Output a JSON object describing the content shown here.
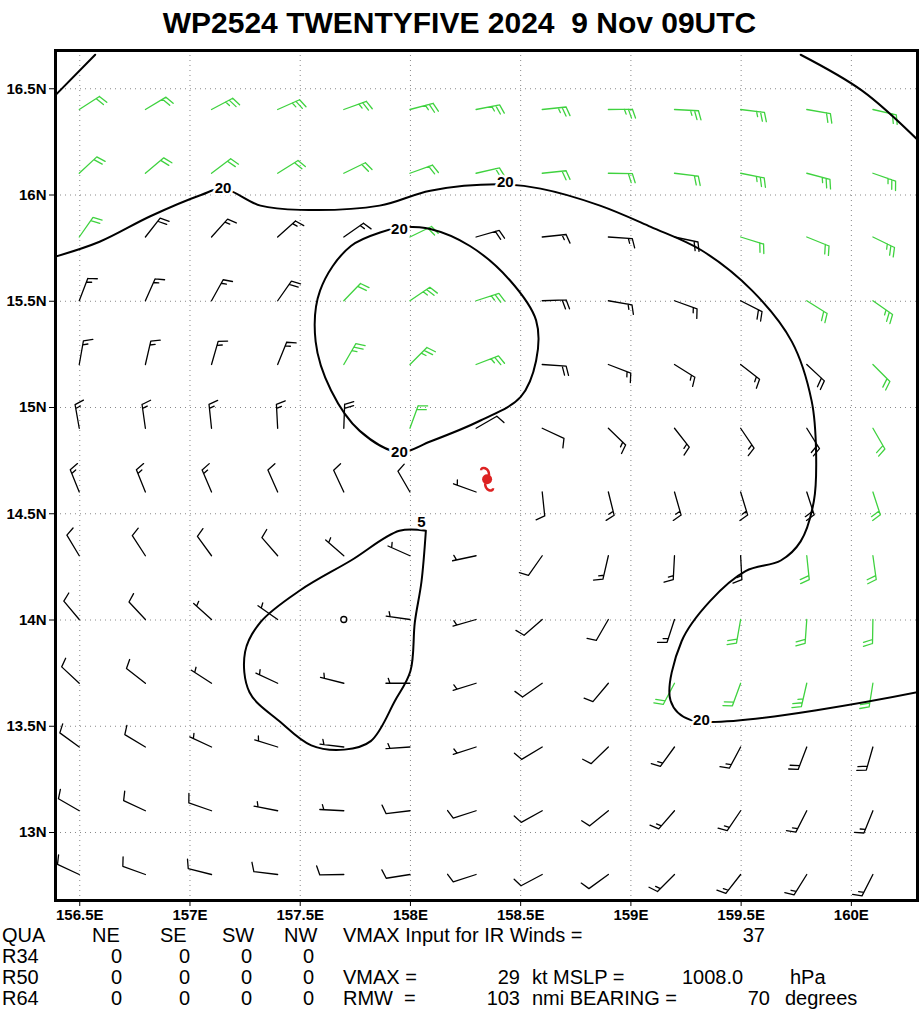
{
  "chart_data": {
    "type": "wind_barbs",
    "title": "WP2524 TWENTYFIVE 2024  9 Nov 09UTC",
    "xlim": [
      156.39,
      160.3
    ],
    "ylim": [
      12.68,
      16.68
    ],
    "xticks": [
      {
        "value": 156.5,
        "label": "156.5E"
      },
      {
        "value": 157,
        "label": "157E"
      },
      {
        "value": 157.5,
        "label": "157.5E"
      },
      {
        "value": 158,
        "label": "158E"
      },
      {
        "value": 158.5,
        "label": "158.5E"
      },
      {
        "value": 159,
        "label": "159E"
      },
      {
        "value": 159.5,
        "label": "159.5E"
      },
      {
        "value": 160,
        "label": "160E"
      }
    ],
    "yticks": [
      {
        "value": 13,
        "label": "13N"
      },
      {
        "value": 13.5,
        "label": "13.5N"
      },
      {
        "value": 14,
        "label": "14N"
      },
      {
        "value": 14.5,
        "label": "14.5N"
      },
      {
        "value": 15,
        "label": "15N"
      },
      {
        "value": 15.5,
        "label": "15.5N"
      },
      {
        "value": 16,
        "label": "16N"
      },
      {
        "value": 16.5,
        "label": "16.5N"
      }
    ],
    "grid": true,
    "center": [
      158.35,
      14.66
    ],
    "center_color": "#dd2222",
    "contours": [
      {
        "level": 20,
        "points": [
          [
            156.39,
            15.71
          ],
          [
            156.59,
            15.78
          ],
          [
            156.82,
            15.9
          ],
          [
            157.05,
            16.0
          ],
          [
            157.15,
            16.03
          ],
          [
            157.32,
            15.95
          ],
          [
            157.5,
            15.93
          ],
          [
            157.86,
            15.95
          ],
          [
            158.09,
            16.02
          ],
          [
            158.41,
            16.05
          ],
          [
            158.59,
            16.03
          ],
          [
            158.86,
            15.95
          ],
          [
            159.09,
            15.85
          ],
          [
            159.32,
            15.74
          ],
          [
            159.55,
            15.55
          ],
          [
            159.73,
            15.31
          ],
          [
            159.82,
            15.03
          ],
          [
            159.84,
            14.79
          ],
          [
            159.83,
            14.56
          ],
          [
            159.77,
            14.37
          ],
          [
            159.68,
            14.28
          ],
          [
            159.52,
            14.23
          ],
          [
            159.36,
            14.09
          ],
          [
            159.23,
            13.9
          ],
          [
            159.18,
            13.62
          ],
          [
            159.27,
            13.53
          ],
          [
            160.3,
            13.66
          ]
        ],
        "label_at": [
          [
            157.15,
            16.03
          ],
          [
            158.43,
            16.06
          ],
          [
            159.32,
            13.53
          ]
        ]
      },
      {
        "level": 20,
        "points": [
          [
            157.95,
            15.85
          ],
          [
            157.73,
            15.76
          ],
          [
            157.59,
            15.55
          ],
          [
            157.57,
            15.31
          ],
          [
            157.64,
            15.08
          ],
          [
            157.77,
            14.89
          ],
          [
            157.95,
            14.79
          ],
          [
            158.09,
            14.84
          ],
          [
            158.32,
            14.94
          ],
          [
            158.5,
            15.05
          ],
          [
            158.57,
            15.22
          ],
          [
            158.57,
            15.41
          ],
          [
            158.45,
            15.6
          ],
          [
            158.27,
            15.76
          ],
          [
            158.09,
            15.84
          ],
          [
            157.95,
            15.85
          ]
        ],
        "label_at": [
          [
            157.95,
            15.84
          ],
          [
            157.95,
            14.79
          ]
        ]
      },
      {
        "level": 5,
        "points": [
          [
            158.07,
            14.42
          ],
          [
            158.05,
            14.18
          ],
          [
            158.02,
            13.99
          ],
          [
            158.0,
            13.76
          ],
          [
            157.93,
            13.62
          ],
          [
            157.82,
            13.43
          ],
          [
            157.7,
            13.39
          ],
          [
            157.55,
            13.41
          ],
          [
            157.41,
            13.52
          ],
          [
            157.27,
            13.66
          ],
          [
            157.25,
            13.85
          ],
          [
            157.32,
            13.99
          ],
          [
            157.5,
            14.14
          ],
          [
            157.73,
            14.28
          ],
          [
            157.95,
            14.42
          ],
          [
            158.07,
            14.42
          ]
        ],
        "label_at": [
          [
            158.05,
            14.46
          ]
        ]
      },
      {
        "points": [
          [
            156.39,
            16.47
          ],
          [
            156.57,
            16.66
          ]
        ]
      },
      {
        "points": [
          [
            159.77,
            16.66
          ],
          [
            160.05,
            16.49
          ],
          [
            160.3,
            16.26
          ]
        ]
      }
    ],
    "barbs": {
      "lon": [
        156.5,
        156.8,
        157.1,
        157.4,
        157.7,
        158.0,
        158.3,
        158.6,
        158.9,
        159.2,
        159.5,
        159.8,
        160.1
      ],
      "lat": [
        16.4,
        16.1,
        15.8,
        15.5,
        15.2,
        14.9,
        14.6,
        14.3,
        14.0,
        13.7,
        13.4,
        13.1,
        12.8
      ],
      "direction_deg": [
        [
          57,
          59,
          62,
          66,
          70,
          75,
          79,
          84,
          89,
          93,
          97,
          100,
          103
        ],
        [
          47,
          50,
          53,
          58,
          64,
          70,
          77,
          84,
          91,
          97,
          101,
          105,
          109
        ],
        [
          35,
          38,
          42,
          48,
          55,
          64,
          74,
          84,
          94,
          102,
          107,
          112,
          116
        ],
        [
          21,
          24,
          29,
          35,
          44,
          56,
          72,
          88,
          100,
          110,
          117,
          122,
          125
        ],
        [
          10,
          13,
          16,
          22,
          30,
          45,
          69,
          94,
          111,
          122,
          128,
          133,
          135
        ],
        [
          350,
          352,
          354,
          357,
          2,
          20,
          60,
          115,
          134,
          142,
          146,
          148,
          150
        ],
        [
          338,
          338,
          337,
          336,
          335,
          330,
          290,
          174,
          166,
          164,
          163,
          162,
          162
        ],
        [
          329,
          327,
          324,
          319,
          311,
          294,
          258,
          215,
          193,
          183,
          177,
          174,
          172
        ],
        [
          320,
          317,
          312,
          305,
          294,
          278,
          254,
          229,
          210,
          198,
          190,
          184,
          181
        ],
        [
          313,
          308,
          303,
          295,
          284,
          270,
          253,
          235,
          220,
          208,
          200,
          193,
          189
        ],
        [
          306,
          301,
          295,
          287,
          277,
          266,
          252,
          239,
          226,
          216,
          208,
          201,
          196
        ],
        [
          300,
          295,
          289,
          281,
          273,
          263,
          252,
          241,
          231,
          221,
          214,
          207,
          202
        ],
        [
          295,
          290,
          284,
          277,
          269,
          261,
          252,
          242,
          234,
          225,
          218,
          212,
          207
        ]
      ],
      "speed_kt": [
        [
          22,
          22,
          23,
          23,
          24,
          24,
          24,
          24,
          24,
          23,
          23,
          22,
          21
        ],
        [
          21,
          21,
          21,
          21,
          20,
          20,
          20,
          21,
          21,
          22,
          23,
          23,
          23
        ],
        [
          20,
          18,
          17,
          17,
          17,
          20,
          18,
          16,
          16,
          19,
          21,
          22,
          23
        ],
        [
          15,
          16,
          17,
          18,
          22,
          24,
          23,
          19,
          16,
          16,
          19,
          21,
          23
        ],
        [
          15,
          15,
          16,
          17,
          23,
          25,
          23,
          19,
          15,
          15,
          16,
          19,
          22
        ],
        [
          15,
          15,
          15,
          16,
          18,
          20,
          12,
          12,
          14,
          15,
          16,
          19,
          22
        ],
        [
          14,
          14,
          13,
          12,
          10,
          8,
          3,
          10,
          14,
          15,
          16,
          19,
          22
        ],
        [
          12,
          11,
          10,
          8,
          5,
          4,
          7,
          10,
          13,
          15,
          16,
          21,
          22
        ],
        [
          11,
          10,
          7,
          3,
          2,
          4,
          6,
          9,
          12,
          16,
          20,
          22,
          22
        ],
        [
          10,
          9,
          6,
          3,
          3,
          5,
          6,
          8,
          11,
          20,
          22,
          23,
          22
        ],
        [
          9,
          8,
          6,
          5,
          4,
          6,
          7,
          9,
          12,
          15,
          17,
          18,
          18
        ],
        [
          9,
          9,
          8,
          7,
          7,
          8,
          9,
          10,
          12,
          14,
          15,
          16,
          16
        ],
        [
          9,
          9,
          9,
          8,
          8,
          9,
          10,
          11,
          12,
          13,
          14,
          15,
          15
        ]
      ],
      "colors": {
        "below": "#000000",
        "above": "#3fd23f"
      },
      "color_threshold": 20
    },
    "info": {
      "header": "QUA",
      "quadrants": [
        "NE",
        "SE",
        "SW",
        "NW"
      ],
      "radii": [
        {
          "label": "R34",
          "values": [
            0,
            0,
            0,
            0
          ]
        },
        {
          "label": "R50",
          "values": [
            0,
            0,
            0,
            0
          ]
        },
        {
          "label": "R64",
          "values": [
            0,
            0,
            0,
            0
          ]
        }
      ],
      "vmax_ir": {
        "text": "VMAX Input for IR Winds =",
        "value": 37
      },
      "vmax": {
        "text": "VMAX =",
        "value": 29,
        "unit": "kt"
      },
      "mslp": {
        "text": "MSLP =",
        "value": 1008.0,
        "label": "1008.0",
        "unit": "hPa"
      },
      "rmw": {
        "text": "RMW  =",
        "value": 103,
        "unit": "nmi"
      },
      "bearing": {
        "text": "BEARING =",
        "value": 70,
        "unit": "degrees"
      }
    }
  }
}
